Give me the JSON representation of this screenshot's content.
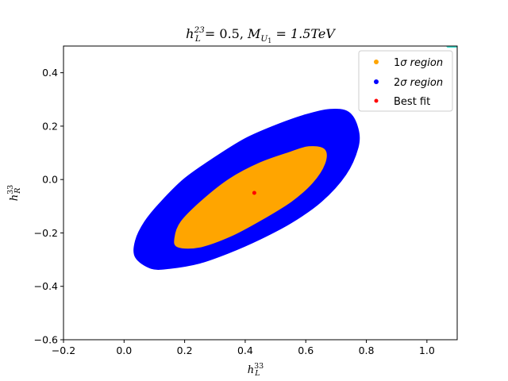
{
  "chart_data": {
    "type": "scatter",
    "title": "h_L^23 = 0.5, M_U1 = 1.5TeV",
    "title_parts": {
      "h_main": "h",
      "h_sub": "L",
      "h_sup": "23",
      "eq1": " = 0.5, ",
      "m_main": "M",
      "m_sub": "U",
      "m_subsub": "1",
      "eq2": " = 1.5TeV"
    },
    "xlabel": "h_L^33",
    "xlabel_parts": {
      "main": "h",
      "sub": "L",
      "sup": "33"
    },
    "ylabel": "h_R^33",
    "ylabel_parts": {
      "main": "h",
      "sub": "R",
      "sup": "33"
    },
    "xlim": [
      -0.2,
      1.1
    ],
    "ylim": [
      -0.6,
      0.5
    ],
    "xticks": [
      -0.2,
      0.0,
      0.2,
      0.4,
      0.6,
      0.8,
      1.0
    ],
    "xtick_labels": [
      "−0.2",
      "0.0",
      "0.2",
      "0.4",
      "0.6",
      "0.8",
      "1.0"
    ],
    "yticks": [
      -0.6,
      -0.4,
      -0.2,
      0.0,
      0.2,
      0.4
    ],
    "ytick_labels": [
      "−0.6",
      "−0.4",
      "−0.2",
      "0.0",
      "0.2",
      "0.4"
    ],
    "grid": false,
    "legend_position": "top-right",
    "series": [
      {
        "name": "2σ region",
        "legend_parts": [
          "2",
          "σ",
          " region"
        ],
        "color": "#0000ff",
        "region": {
          "center": [
            0.445,
            -0.04
          ],
          "boundary": [
            [
              0.04,
              -0.29
            ],
            [
              0.09,
              -0.33
            ],
            [
              0.15,
              -0.33
            ],
            [
              0.25,
              -0.31
            ],
            [
              0.35,
              -0.27
            ],
            [
              0.45,
              -0.22
            ],
            [
              0.55,
              -0.16
            ],
            [
              0.65,
              -0.08
            ],
            [
              0.73,
              0.02
            ],
            [
              0.77,
              0.12
            ],
            [
              0.77,
              0.19
            ],
            [
              0.74,
              0.25
            ],
            [
              0.68,
              0.26
            ],
            [
              0.6,
              0.24
            ],
            [
              0.5,
              0.2
            ],
            [
              0.4,
              0.15
            ],
            [
              0.3,
              0.08
            ],
            [
              0.2,
              0.0
            ],
            [
              0.12,
              -0.09
            ],
            [
              0.07,
              -0.16
            ],
            [
              0.04,
              -0.23
            ]
          ]
        }
      },
      {
        "name": "1σ region",
        "legend_parts": [
          "1",
          "σ",
          " region"
        ],
        "color": "#ffa500",
        "region": {
          "center": [
            0.43,
            -0.05
          ],
          "boundary": [
            [
              0.18,
              -0.25
            ],
            [
              0.25,
              -0.25
            ],
            [
              0.35,
              -0.21
            ],
            [
              0.45,
              -0.15
            ],
            [
              0.55,
              -0.08
            ],
            [
              0.62,
              -0.01
            ],
            [
              0.66,
              0.06
            ],
            [
              0.66,
              0.11
            ],
            [
              0.61,
              0.12
            ],
            [
              0.55,
              0.1
            ],
            [
              0.45,
              0.06
            ],
            [
              0.35,
              0.0
            ],
            [
              0.26,
              -0.08
            ],
            [
              0.19,
              -0.16
            ],
            [
              0.17,
              -0.22
            ]
          ]
        }
      },
      {
        "name": "Best fit",
        "color": "#ff0000",
        "points": [
          [
            0.43,
            -0.05
          ]
        ]
      },
      {
        "name": "",
        "color": "#40e0d0",
        "points": [
          [
            1.07,
            0.5
          ],
          [
            1.075,
            0.5
          ],
          [
            1.08,
            0.5
          ],
          [
            1.085,
            0.5
          ],
          [
            1.09,
            0.5
          ],
          [
            1.095,
            0.5
          ]
        ]
      }
    ]
  }
}
